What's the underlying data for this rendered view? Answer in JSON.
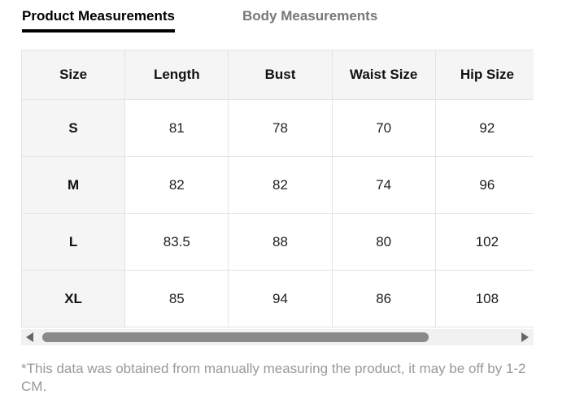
{
  "tabs": [
    "Product Measurements",
    "Body Measurements"
  ],
  "table": {
    "header": [
      "Size",
      "Length",
      "Bust",
      "Waist Size",
      "Hip Size"
    ],
    "rows": [
      [
        "S",
        "81",
        "78",
        "70",
        "92"
      ],
      [
        "M",
        "82",
        "82",
        "74",
        "96"
      ],
      [
        "L",
        "83.5",
        "88",
        "80",
        "102"
      ],
      [
        "XL",
        "85",
        "94",
        "86",
        "108"
      ]
    ]
  },
  "footnote": "*This data was obtained from manually measuring the product, it may be off by 1-2 CM."
}
